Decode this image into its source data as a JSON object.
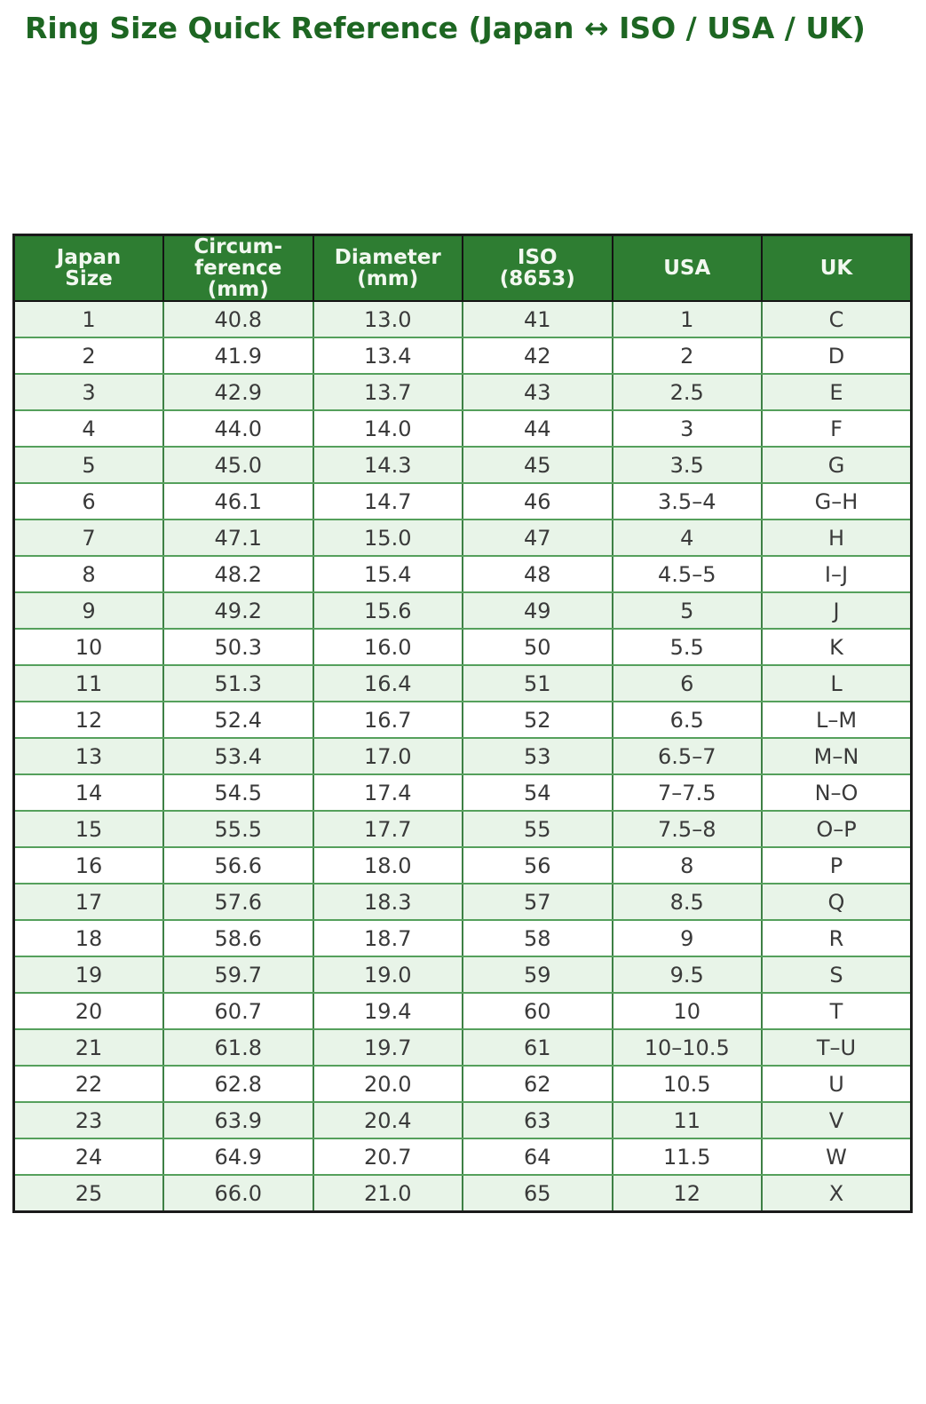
{
  "title": "Ring Size Quick Reference (Japan ↔ ISO / USA / UK)",
  "colors": {
    "title_text": "#1d6622",
    "header_bg": "#2e7d32",
    "header_text": "#f2f8f0",
    "row_alt_bg": "#e8f4e8",
    "row_bg": "#ffffff",
    "grid_horizontal": "#55a05c",
    "grid_vertical": "#3e8045",
    "outer_border": "#1a1a1a",
    "body_text": "#3a3a3a"
  },
  "chart_data": {
    "type": "table",
    "title": "Ring Size Quick Reference (Japan ↔ ISO / USA / UK)",
    "columns": [
      "Japan\nSize",
      "Circum-\nference\n(mm)",
      "Diameter\n(mm)",
      "ISO\n(8653)",
      "USA",
      "UK"
    ],
    "rows": [
      [
        "1",
        "40.8",
        "13.0",
        "41",
        "1",
        "C"
      ],
      [
        "2",
        "41.9",
        "13.4",
        "42",
        "2",
        "D"
      ],
      [
        "3",
        "42.9",
        "13.7",
        "43",
        "2.5",
        "E"
      ],
      [
        "4",
        "44.0",
        "14.0",
        "44",
        "3",
        "F"
      ],
      [
        "5",
        "45.0",
        "14.3",
        "45",
        "3.5",
        "G"
      ],
      [
        "6",
        "46.1",
        "14.7",
        "46",
        "3.5–4",
        "G–H"
      ],
      [
        "7",
        "47.1",
        "15.0",
        "47",
        "4",
        "H"
      ],
      [
        "8",
        "48.2",
        "15.4",
        "48",
        "4.5–5",
        "I–J"
      ],
      [
        "9",
        "49.2",
        "15.6",
        "49",
        "5",
        "J"
      ],
      [
        "10",
        "50.3",
        "16.0",
        "50",
        "5.5",
        "K"
      ],
      [
        "11",
        "51.3",
        "16.4",
        "51",
        "6",
        "L"
      ],
      [
        "12",
        "52.4",
        "16.7",
        "52",
        "6.5",
        "L–M"
      ],
      [
        "13",
        "53.4",
        "17.0",
        "53",
        "6.5–7",
        "M–N"
      ],
      [
        "14",
        "54.5",
        "17.4",
        "54",
        "7–7.5",
        "N–O"
      ],
      [
        "15",
        "55.5",
        "17.7",
        "55",
        "7.5–8",
        "O–P"
      ],
      [
        "16",
        "56.6",
        "18.0",
        "56",
        "8",
        "P"
      ],
      [
        "17",
        "57.6",
        "18.3",
        "57",
        "8.5",
        "Q"
      ],
      [
        "18",
        "58.6",
        "18.7",
        "58",
        "9",
        "R"
      ],
      [
        "19",
        "59.7",
        "19.0",
        "59",
        "9.5",
        "S"
      ],
      [
        "20",
        "60.7",
        "19.4",
        "60",
        "10",
        "T"
      ],
      [
        "21",
        "61.8",
        "19.7",
        "61",
        "10–10.5",
        "T–U"
      ],
      [
        "22",
        "62.8",
        "20.0",
        "62",
        "10.5",
        "U"
      ],
      [
        "23",
        "63.9",
        "20.4",
        "63",
        "11",
        "V"
      ],
      [
        "24",
        "64.9",
        "20.7",
        "64",
        "11.5",
        "W"
      ],
      [
        "25",
        "66.0",
        "21.0",
        "65",
        "12",
        "X"
      ]
    ]
  }
}
